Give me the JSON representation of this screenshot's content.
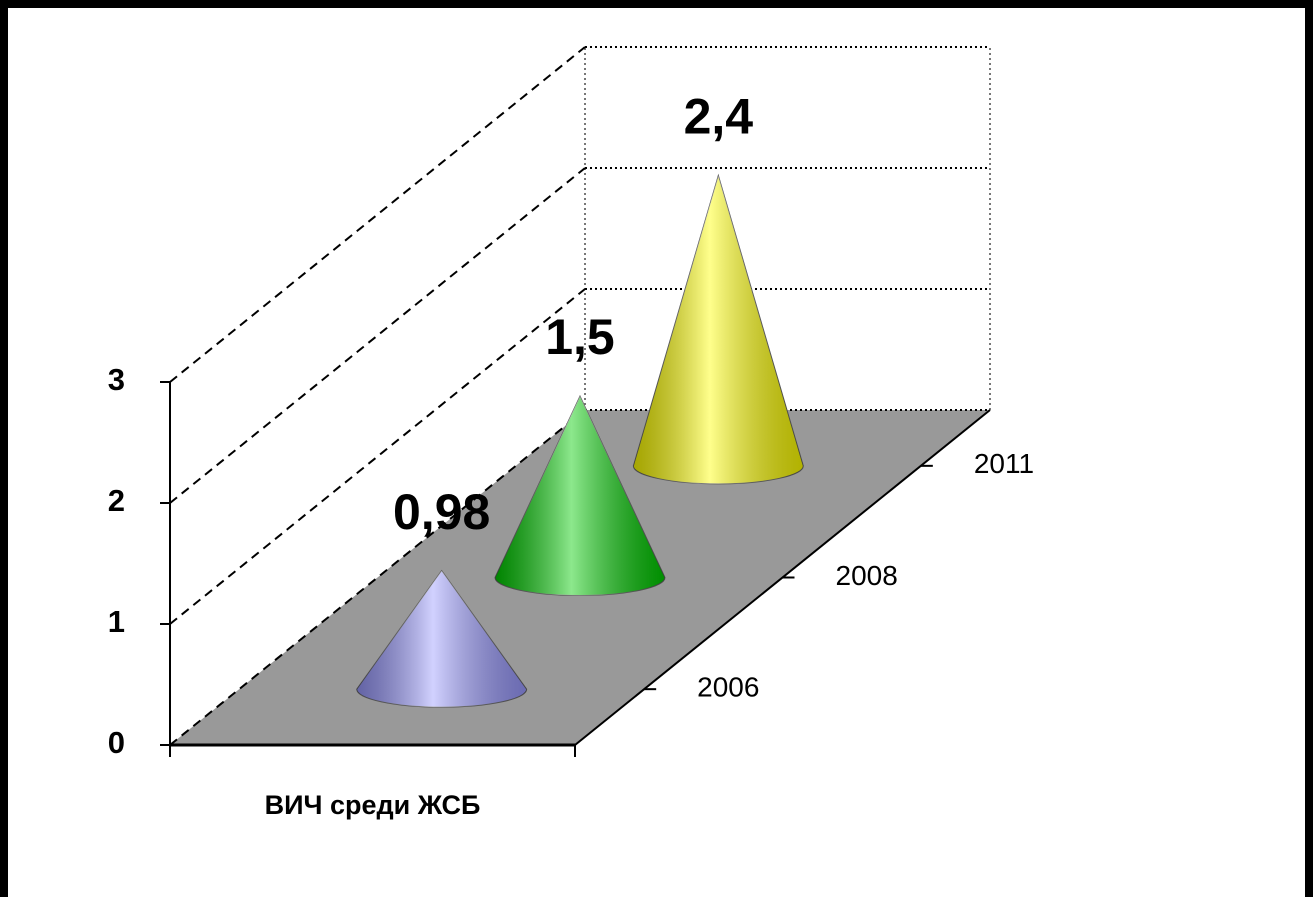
{
  "chart_data": {
    "type": "cone",
    "categories": [
      "ВИЧ среди ЖСБ"
    ],
    "series": [
      {
        "name": "2006",
        "color": "#9999ff",
        "values": [
          0.98
        ],
        "value_labels": [
          "0,98"
        ]
      },
      {
        "name": "2008",
        "color": "#00cc00",
        "values": [
          1.5
        ],
        "value_labels": [
          "1,5"
        ]
      },
      {
        "name": "2011",
        "color": "#ffff00",
        "values": [
          2.4
        ],
        "value_labels": [
          "2,4"
        ]
      }
    ],
    "ylim": [
      0,
      3
    ],
    "yticks": [
      0,
      1,
      2,
      3
    ],
    "grid": true,
    "floor_color": "#999999"
  }
}
